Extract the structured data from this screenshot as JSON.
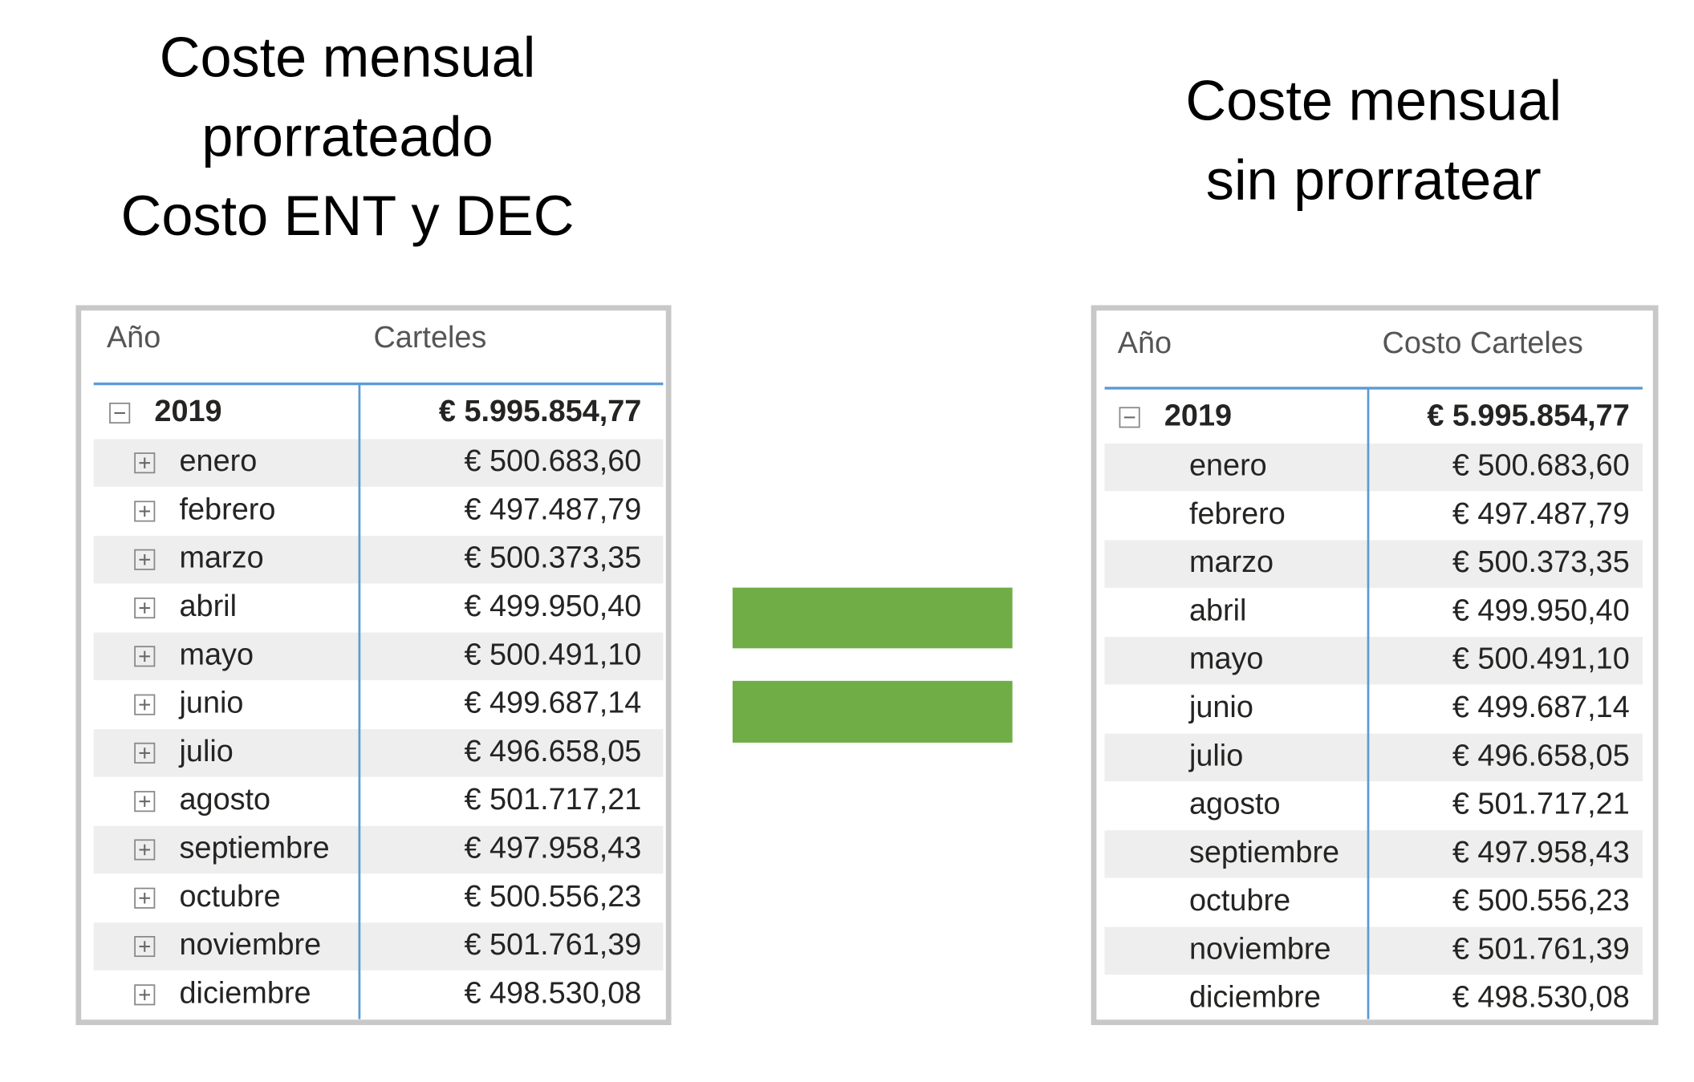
{
  "left": {
    "title": [
      "Coste mensual",
      "prorrateado",
      "Costo ENT y DEC"
    ],
    "table": {
      "header": [
        "Año",
        "Carteles"
      ],
      "total": [
        "2019",
        "€ 5.995.854,77"
      ],
      "rows": [
        [
          "enero",
          "€ 500.683,60"
        ],
        [
          "febrero",
          "€ 497.487,79"
        ],
        [
          "marzo",
          "€ 500.373,35"
        ],
        [
          "abril",
          "€ 499.950,40"
        ],
        [
          "mayo",
          "€ 500.491,10"
        ],
        [
          "junio",
          "€ 499.687,14"
        ],
        [
          "julio",
          "€ 496.658,05"
        ],
        [
          "agosto",
          "€ 501.717,21"
        ],
        [
          "septiembre",
          "€ 497.958,43"
        ],
        [
          "octubre",
          "€ 500.556,23"
        ],
        [
          "noviembre",
          "€ 501.761,39"
        ],
        [
          "diciembre",
          "€ 498.530,08"
        ]
      ]
    }
  },
  "right": {
    "title": [
      "Coste mensual",
      "sin prorratear"
    ],
    "table": {
      "header": [
        "Año",
        "Costo Carteles"
      ],
      "total": [
        "2019",
        "€ 5.995.854,77"
      ],
      "rows": [
        [
          "enero",
          "€ 500.683,60"
        ],
        [
          "febrero",
          "€ 497.487,79"
        ],
        [
          "marzo",
          "€ 500.373,35"
        ],
        [
          "abril",
          "€ 499.950,40"
        ],
        [
          "mayo",
          "€ 500.491,10"
        ],
        [
          "junio",
          "€ 499.687,14"
        ],
        [
          "julio",
          "€ 496.658,05"
        ],
        [
          "agosto",
          "€ 501.717,21"
        ],
        [
          "septiembre",
          "€ 497.958,43"
        ],
        [
          "octubre",
          "€ 500.556,23"
        ],
        [
          "noviembre",
          "€ 501.761,39"
        ],
        [
          "diciembre",
          "€ 498.530,08"
        ]
      ]
    }
  }
}
